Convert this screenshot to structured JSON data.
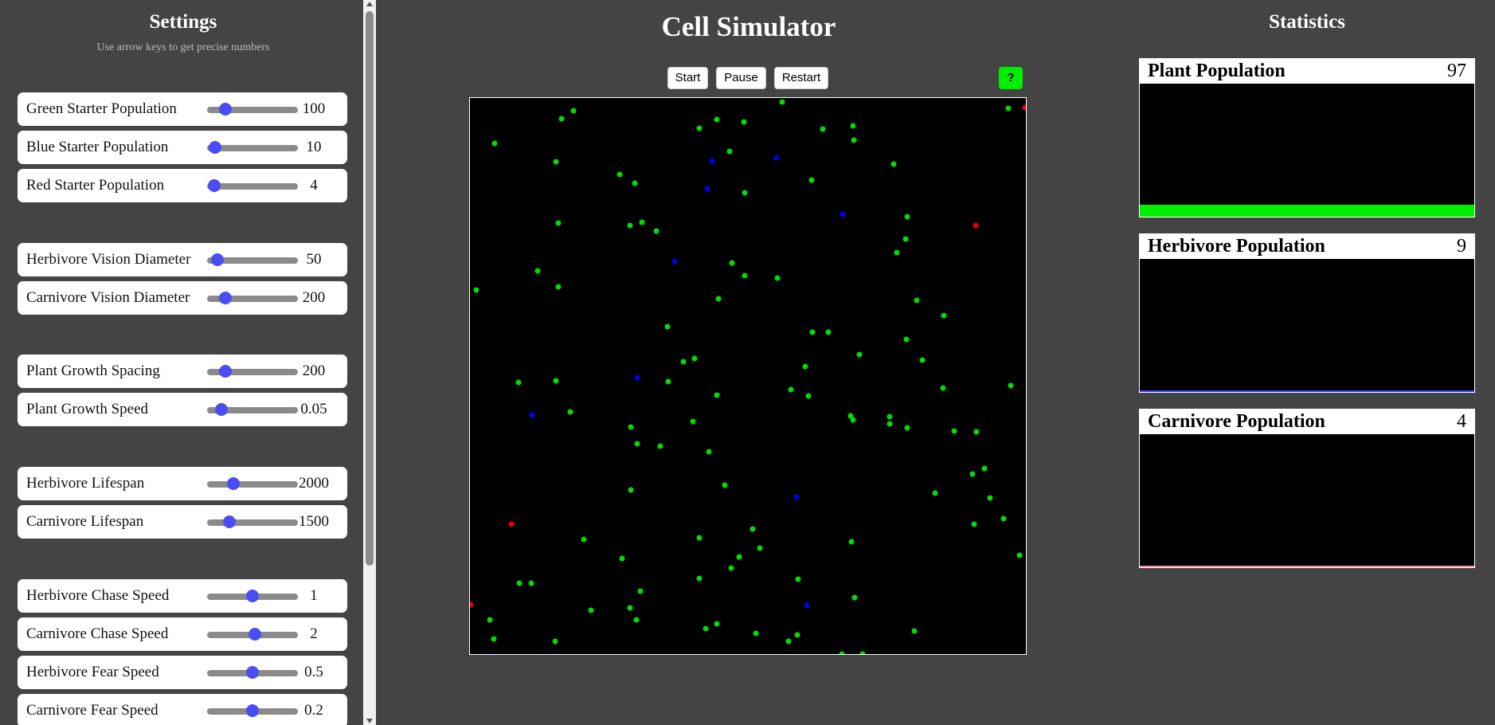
{
  "sidebar": {
    "title": "Settings",
    "hint": "Use arrow keys to get precise numbers",
    "settings": [
      {
        "label": "Green Starter Population",
        "value": "100",
        "fraction": 0.15
      },
      {
        "label": "Blue Starter Population",
        "value": "10",
        "fraction": 0.02
      },
      {
        "label": "Red Starter Population",
        "value": "4",
        "fraction": 0.01
      },
      {
        "label": "Herbivore Vision Diameter",
        "value": "50",
        "fraction": 0.05
      },
      {
        "label": "Carnivore Vision Diameter",
        "value": "200",
        "fraction": 0.15
      },
      {
        "label": "Plant Growth Spacing",
        "value": "200",
        "fraction": 0.15
      },
      {
        "label": "Plant Growth Speed",
        "value": "0.05",
        "fraction": 0.1
      },
      {
        "label": "Herbivore Lifespan",
        "value": "2000",
        "fraction": 0.25
      },
      {
        "label": "Carnivore Lifespan",
        "value": "1500",
        "fraction": 0.2
      },
      {
        "label": "Herbivore Chase Speed",
        "value": "1",
        "fraction": 0.5
      },
      {
        "label": "Carnivore Chase Speed",
        "value": "2",
        "fraction": 0.53
      },
      {
        "label": "Herbivore Fear Speed",
        "value": "0.5",
        "fraction": 0.5
      },
      {
        "label": "Carnivore Fear Speed",
        "value": "0.2",
        "fraction": 0.5
      }
    ]
  },
  "main": {
    "title": "Cell Simulator",
    "buttons": {
      "start": "Start",
      "pause": "Pause",
      "restart": "Restart",
      "help": "?"
    }
  },
  "stats": {
    "title": "Statistics",
    "cards": [
      {
        "label": "Plant Population",
        "count": "97",
        "color": "#00ee00",
        "fraction": 0.09
      },
      {
        "label": "Herbivore Population",
        "count": "9",
        "color": "#3344ff",
        "fraction": 0.012
      },
      {
        "label": "Carnivore Population",
        "count": "4",
        "color": "#ff8888",
        "fraction": 0.012
      }
    ]
  },
  "colors": {
    "plant": "#00dd00",
    "herbivore": "#0000ee",
    "carnivore": "#ee0000",
    "accent": "#4a4ef2"
  }
}
